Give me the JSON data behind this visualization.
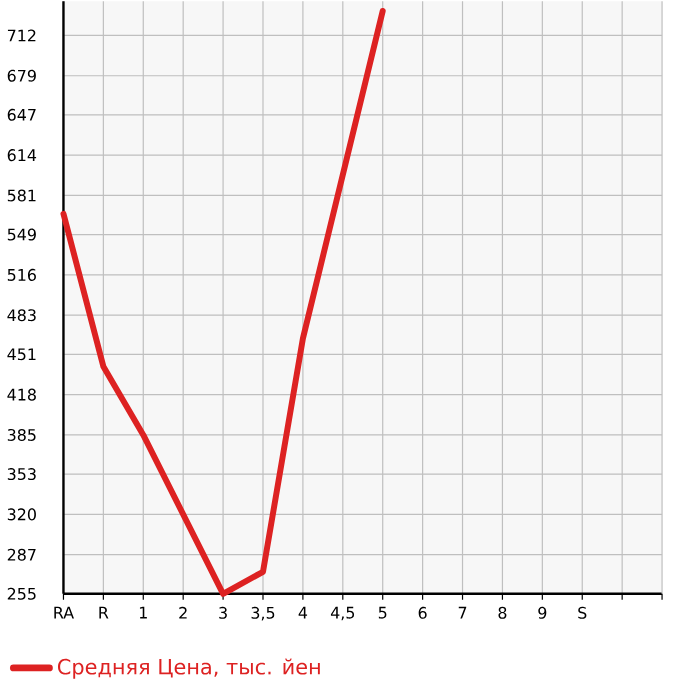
{
  "chart_data": {
    "type": "line",
    "categories": [
      "RA",
      "R",
      "1",
      "2",
      "3",
      "3,5",
      "4",
      "4,5",
      "5",
      "6",
      "7",
      "8",
      "9",
      "S",
      null
    ],
    "series": [
      {
        "name": "Средняя Цена, тыс. йен",
        "color": "#dd2222",
        "values": [
          566,
          441,
          385,
          320,
          255,
          273,
          464,
          598,
          732,
          null,
          null,
          null,
          null,
          null,
          null
        ]
      }
    ],
    "ylim": [
      255,
      740
    ],
    "yticks": [
      255,
      287,
      320,
      353,
      385,
      418,
      451,
      483,
      516,
      549,
      581,
      614,
      647,
      679,
      712
    ],
    "grid": true,
    "legend": "bottom left",
    "marker": "none",
    "line_style": "solid"
  }
}
